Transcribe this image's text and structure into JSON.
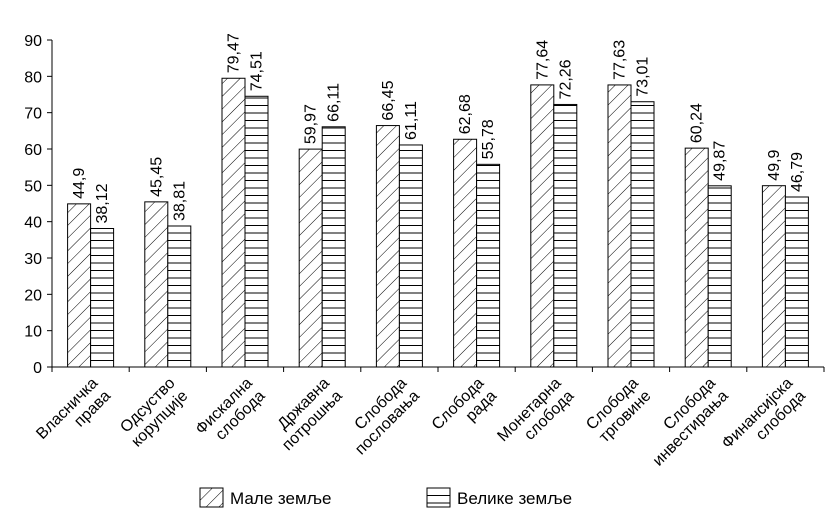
{
  "chart_data": {
    "type": "bar",
    "categories": [
      [
        "Власничка",
        "права"
      ],
      [
        "Одсуство",
        "корупције"
      ],
      [
        "Фискална",
        "слобода"
      ],
      [
        "Државна",
        "потрошња"
      ],
      [
        "Слобода",
        "пословања"
      ],
      [
        "Слобода",
        "рада"
      ],
      [
        "Монетарна",
        "слобода"
      ],
      [
        "Слобода",
        "трговине"
      ],
      [
        "Слобода",
        "инвестирања"
      ],
      [
        "Финансијска",
        "слобода"
      ]
    ],
    "series": [
      {
        "name": "Мале земље",
        "pattern": "diagonal-hatch",
        "values": [
          44.9,
          45.45,
          79.47,
          59.97,
          66.45,
          62.68,
          77.64,
          77.63,
          60.24,
          49.9
        ],
        "labels": [
          "44,9",
          "45,45",
          "79,47",
          "59,97",
          "66,45",
          "62,68",
          "77,64",
          "77,63",
          "60,24",
          "49,9"
        ]
      },
      {
        "name": "Велике земље",
        "pattern": "horizontal-lines",
        "values": [
          38.12,
          38.81,
          74.51,
          66.11,
          61.11,
          55.78,
          72.26,
          73.01,
          49.87,
          46.79
        ],
        "labels": [
          "38,12",
          "38,81",
          "74,51",
          "66,11",
          "61,11",
          "55,78",
          "72,26",
          "73,01",
          "49,87",
          "46,79"
        ]
      }
    ],
    "ylim": [
      0,
      90
    ],
    "yticks": [
      0,
      10,
      20,
      30,
      40,
      50,
      60,
      70,
      80,
      90
    ],
    "grid": false,
    "legend": "bottom",
    "colors": {
      "stroke": "#000000",
      "fill": "#ffffff"
    }
  }
}
